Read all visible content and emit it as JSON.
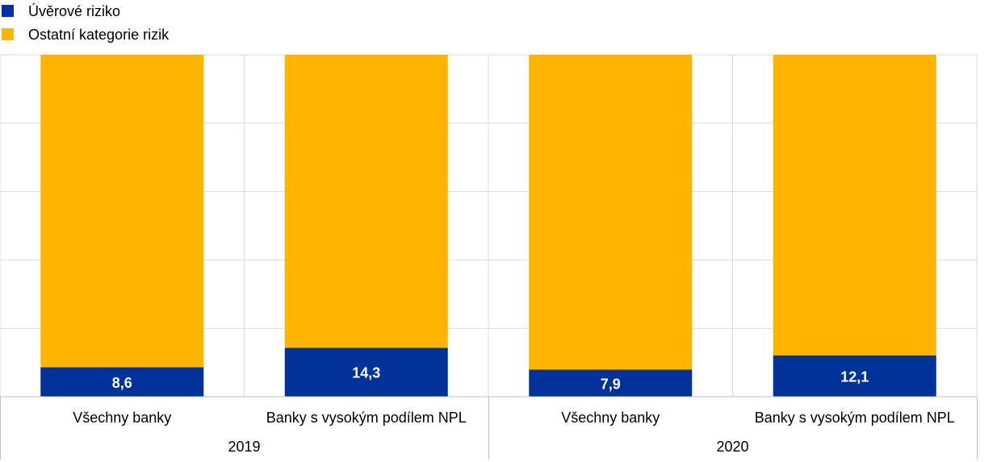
{
  "chart_data": {
    "type": "bar",
    "stacked": true,
    "percent_stacked": true,
    "categories": [
      "Všechny banky",
      "Banky s vysokým podílem NPL",
      "Všechny banky",
      "Banky s vysokým podílem NPL"
    ],
    "groups": [
      {
        "label": "2019",
        "categories": [
          0,
          1
        ]
      },
      {
        "label": "2020",
        "categories": [
          2,
          3
        ]
      }
    ],
    "series": [
      {
        "name": "Úvěrové riziko",
        "color": "#003299",
        "values": [
          8.6,
          14.3,
          7.9,
          12.1
        ],
        "labels": [
          "8,6",
          "14,3",
          "7,9",
          "12,1"
        ]
      },
      {
        "name": "Ostatní kategorie rizik",
        "color": "#FFB400",
        "values": [
          91.4,
          85.7,
          92.1,
          87.9
        ]
      }
    ],
    "ylim": [
      0,
      100
    ],
    "grid": true,
    "legend_position": "top-left"
  }
}
